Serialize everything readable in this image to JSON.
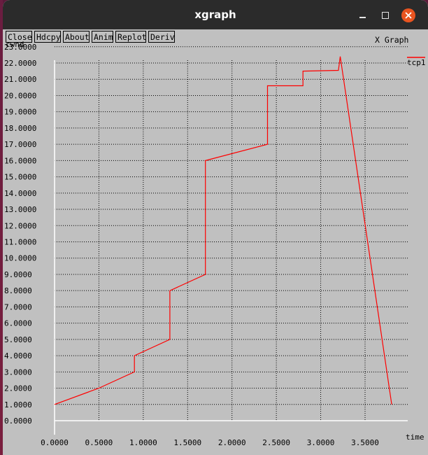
{
  "window": {
    "title": "xgraph",
    "minimize_symbol": "—",
    "maximize_symbol": "□",
    "close_symbol": "×"
  },
  "toolbar": {
    "buttons": [
      "Close",
      "Hdcpy",
      "About",
      "Anim",
      "Replot",
      "Deriv"
    ]
  },
  "plot_title": "X Graph",
  "colors": {
    "background": "#c0c0c0",
    "titlebar": "#2b2b2b",
    "close_button": "#e95420",
    "series": "#ff0000",
    "axis": "#ffffff",
    "grid": "#000000"
  },
  "chart_data": {
    "type": "line",
    "title": "X Graph",
    "xlabel": "time",
    "ylabel": "cwnd",
    "xlim": [
      0,
      3.8
    ],
    "ylim": [
      0,
      23
    ],
    "x_ticks": [
      "0.0000",
      "0.5000",
      "1.0000",
      "1.5000",
      "2.0000",
      "2.5000",
      "3.0000",
      "3.5000"
    ],
    "y_ticks": [
      "0.0000",
      "1.0000",
      "2.0000",
      "3.0000",
      "4.0000",
      "5.0000",
      "6.0000",
      "7.0000",
      "8.0000",
      "9.0000",
      "10.0000",
      "11.0000",
      "12.0000",
      "13.0000",
      "14.0000",
      "15.0000",
      "16.0000",
      "17.0000",
      "18.0000",
      "19.0000",
      "20.0000",
      "21.0000",
      "22.0000",
      "23.0000"
    ],
    "grid": true,
    "legend_position": "top-right",
    "series": [
      {
        "name": "tcp1",
        "color": "#ff0000",
        "points": [
          [
            0.0,
            1.0
          ],
          [
            0.5,
            2.0
          ],
          [
            0.9,
            3.0
          ],
          [
            0.9,
            4.0
          ],
          [
            1.3,
            5.0
          ],
          [
            1.3,
            8.0
          ],
          [
            1.7,
            9.0
          ],
          [
            1.7,
            16.0
          ],
          [
            2.4,
            17.0
          ],
          [
            2.4,
            20.6
          ],
          [
            2.8,
            20.6
          ],
          [
            2.8,
            21.5
          ],
          [
            3.2,
            21.55
          ],
          [
            3.22,
            22.4
          ],
          [
            3.8,
            1.0
          ]
        ]
      }
    ]
  }
}
